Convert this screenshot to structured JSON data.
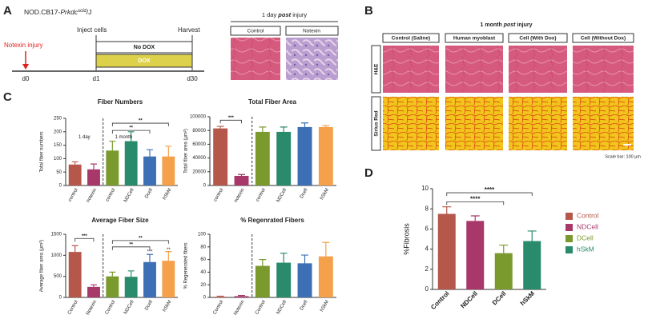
{
  "panel_labels": [
    "A",
    "B",
    "C",
    "D"
  ],
  "panel_a": {
    "strain": "NOD.CB17-",
    "strain_gene": "Prkdc",
    "strain_sup": "scid",
    "strain_tail": "/J",
    "injury": "Notexin injury",
    "inject": "Inject cells",
    "harvest": "Harvest",
    "no_dox": "No DOX",
    "dox": "DOX",
    "days": [
      "d0",
      "d1",
      "d30"
    ],
    "image_title_pre": "1 day ",
    "image_title_italic": "post",
    "image_title_post": " injury",
    "image_headers": [
      "Control",
      "Notexin"
    ]
  },
  "panel_b": {
    "title_pre": "1 month ",
    "title_italic": "post",
    "title_post": " injury",
    "columns": [
      "Control (Saline)",
      "Human myoblast",
      "Cell (With Dox)",
      "Cell (Without Dox)"
    ],
    "rows": [
      "H&E",
      "Sirius Red"
    ],
    "scale_note": "Scale bar: 100 μm"
  },
  "chart_data": [
    {
      "type": "bar",
      "title": "Fiber Numbers",
      "y_label": "Total fiber numbers",
      "categories": [
        "control",
        "notexin",
        "control",
        "NDCell",
        "Dcell",
        "hSkM"
      ],
      "values": [
        78,
        60,
        130,
        165,
        108,
        108
      ],
      "errors": [
        10,
        20,
        35,
        35,
        25,
        38
      ],
      "colors": [
        "#b5574a",
        "#a8386a",
        "#7b9a2e",
        "#2a8a6c",
        "#3d6fb5",
        "#f5a04a"
      ],
      "ylim": [
        0,
        250
      ],
      "yticks": [
        0,
        50,
        100,
        150,
        200,
        250
      ],
      "annotations": [
        "1 day",
        "1 month",
        "**",
        "**"
      ]
    },
    {
      "type": "bar",
      "title": "Total Fiber Area",
      "y_label": "Total fiber area (μm²)",
      "categories": [
        "control",
        "notexin",
        "control",
        "NDCell",
        "Dcell",
        "hSkM"
      ],
      "values": [
        83000,
        14000,
        78000,
        78000,
        85000,
        85000
      ],
      "errors": [
        3000,
        2000,
        7000,
        7000,
        6000,
        2000
      ],
      "colors": [
        "#b5574a",
        "#a8386a",
        "#7b9a2e",
        "#2a8a6c",
        "#3d6fb5",
        "#f5a04a"
      ],
      "ylim": [
        0,
        100000
      ],
      "yticks": [
        0,
        20000,
        40000,
        60000,
        80000,
        100000
      ],
      "annotations": [
        "***"
      ]
    },
    {
      "type": "bar",
      "title": "Average Fiber Size",
      "y_label": "Average fiber area (μm²)",
      "categories": [
        "Control",
        "Notexin",
        "Control",
        "NDCell",
        "Dcell",
        "hSkM"
      ],
      "values": [
        1080,
        250,
        500,
        490,
        840,
        870
      ],
      "errors": [
        150,
        50,
        100,
        140,
        180,
        220
      ],
      "colors": [
        "#b5574a",
        "#a8386a",
        "#7b9a2e",
        "#2a8a6c",
        "#3d6fb5",
        "#f5a04a"
      ],
      "ylim": [
        0,
        1500
      ],
      "yticks": [
        0,
        500,
        1000,
        1500
      ],
      "annotations": [
        "***",
        "**",
        "**",
        "***",
        "**"
      ]
    },
    {
      "type": "bar",
      "title": "% Regenrated Fibers",
      "y_label": "% Regenerated fibers",
      "categories": [
        "Control",
        "Notexin",
        "Control",
        "NDCell",
        "Dcell",
        "hSkM"
      ],
      "values": [
        1,
        2,
        50,
        55,
        54,
        65
      ],
      "errors": [
        1,
        1,
        10,
        15,
        13,
        22
      ],
      "colors": [
        "#b5574a",
        "#a8386a",
        "#7b9a2e",
        "#2a8a6c",
        "#3d6fb5",
        "#f5a04a"
      ],
      "ylim": [
        0,
        100
      ],
      "yticks": [
        0,
        20,
        40,
        60,
        80,
        100
      ],
      "annotations": []
    },
    {
      "type": "bar",
      "y_label": "%Fibrosis",
      "categories": [
        "Control",
        "NDCell",
        "DCell",
        "hSkM"
      ],
      "values": [
        7.5,
        6.8,
        3.6,
        4.8
      ],
      "errors": [
        0.7,
        0.5,
        0.8,
        1.0
      ],
      "colors": [
        "#b5574a",
        "#a8386a",
        "#7b9a2e",
        "#2a8a6c"
      ],
      "ylim": [
        0,
        10
      ],
      "yticks": [
        0,
        2,
        4,
        6,
        8,
        10
      ],
      "legend": "right",
      "annotations": [
        "****",
        "****"
      ]
    }
  ]
}
